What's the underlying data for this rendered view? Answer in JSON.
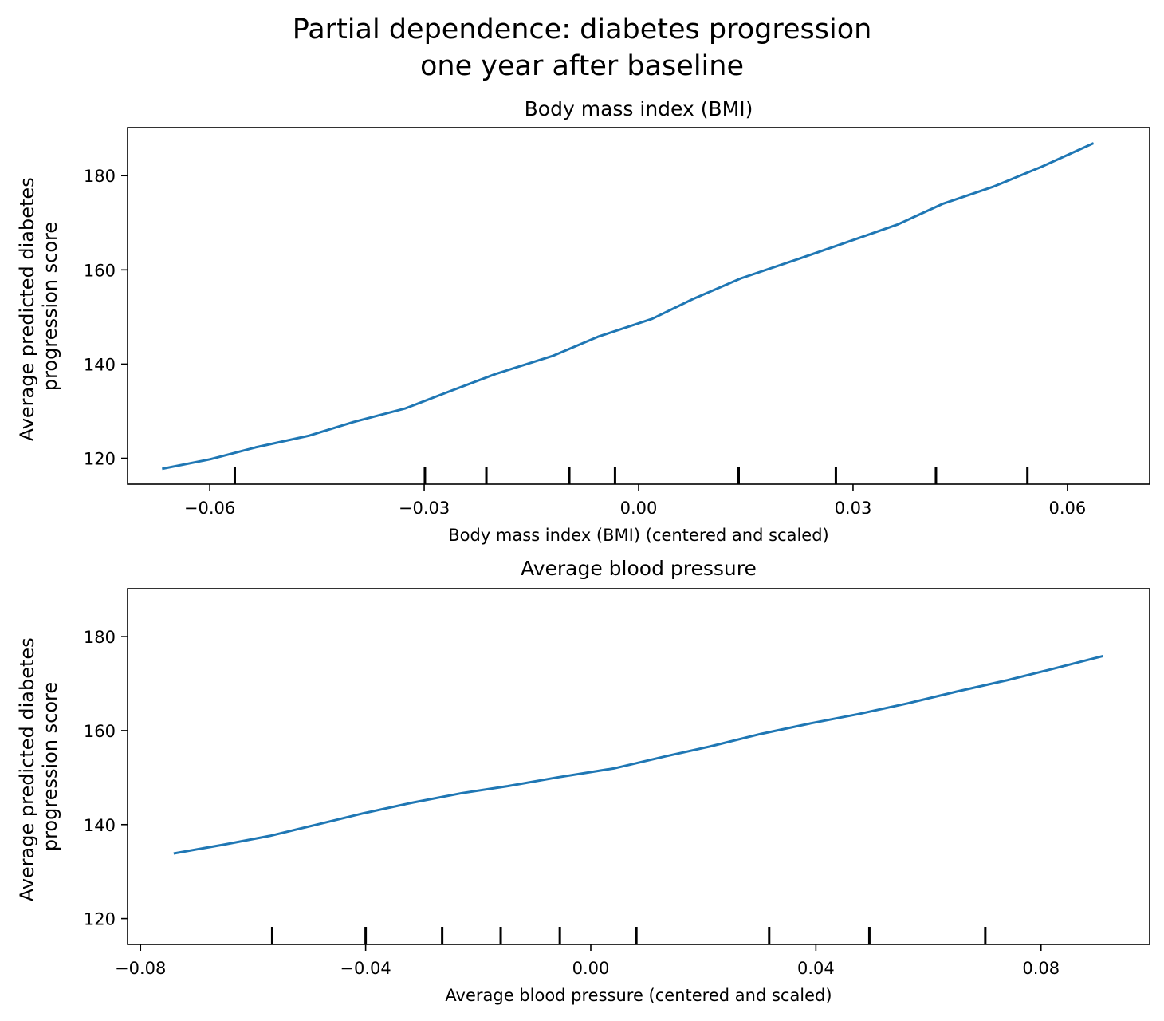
{
  "figure": {
    "suptitle": "Partial dependence: diabetes progression\none year after baseline"
  },
  "chart_data": [
    {
      "type": "line",
      "title": "Body mass index (BMI)",
      "xlabel": "Body mass index (BMI) (centered and scaled)",
      "ylabel": "Average predicted diabetes\nprogression score",
      "xlim": [
        -0.0715,
        0.0715
      ],
      "ylim": [
        114.5,
        190.2
      ],
      "xticks": [
        -0.06,
        -0.03,
        0.0,
        0.03,
        0.06
      ],
      "xticklabels": [
        "−0.06",
        "−0.03",
        "0.00",
        "0.03",
        "0.06"
      ],
      "yticks": [
        120,
        140,
        160,
        180
      ],
      "yticklabels": [
        "120",
        "140",
        "160",
        "180"
      ],
      "line_color": "#1f77b4",
      "series": [
        {
          "x": [
            -0.0665,
            -0.0599,
            -0.0536,
            -0.0461,
            -0.0399,
            -0.0326,
            -0.0263,
            -0.02,
            -0.0119,
            -0.0057,
            0.0019,
            0.0076,
            0.0143,
            0.0225,
            0.0288,
            0.0362,
            0.0425,
            0.0497,
            0.0564,
            0.0635
          ],
          "y": [
            117.8,
            119.8,
            122.3,
            124.8,
            127.7,
            130.6,
            134.3,
            137.9,
            141.8,
            145.8,
            149.6,
            153.8,
            158.2,
            162.4,
            165.7,
            169.6,
            174.0,
            177.7,
            181.9,
            186.8
          ]
        }
      ],
      "rug_deciles": [
        -0.0565,
        -0.0299,
        -0.0213,
        -0.0097,
        -0.0033,
        0.014,
        0.0276,
        0.0416,
        0.0544
      ]
    },
    {
      "type": "line",
      "title": "Average blood pressure",
      "xlabel": "Average blood pressure (centered and scaled)",
      "ylabel": "Average predicted diabetes\nprogression score",
      "xlim": [
        -0.0823,
        0.0993
      ],
      "ylim": [
        114.5,
        190.2
      ],
      "xticks": [
        -0.08,
        -0.04,
        0.0,
        0.04,
        0.08
      ],
      "xticklabels": [
        "−0.08",
        "−0.04",
        "0.00",
        "0.04",
        "0.08"
      ],
      "yticks": [
        120,
        140,
        160,
        180
      ],
      "yticklabels": [
        "120",
        "140",
        "160",
        "180"
      ],
      "line_color": "#1f77b4",
      "series": [
        {
          "x": [
            -0.0739,
            -0.0654,
            -0.057,
            -0.0487,
            -0.0404,
            -0.0316,
            -0.0229,
            -0.0147,
            -0.0061,
            0.0043,
            0.0132,
            0.0211,
            0.0302,
            0.0389,
            0.0475,
            0.0563,
            0.065,
            0.0739,
            0.082,
            0.0908
          ],
          "y": [
            133.9,
            135.7,
            137.6,
            140.0,
            142.4,
            144.7,
            146.7,
            148.2,
            150.0,
            152.0,
            154.5,
            156.6,
            159.3,
            161.5,
            163.5,
            165.8,
            168.3,
            170.7,
            173.1,
            175.8
          ]
        }
      ],
      "rug_deciles": [
        -0.0566,
        -0.04,
        -0.0264,
        -0.016,
        -0.0055,
        0.0081,
        0.0317,
        0.0495,
        0.0701
      ]
    }
  ]
}
